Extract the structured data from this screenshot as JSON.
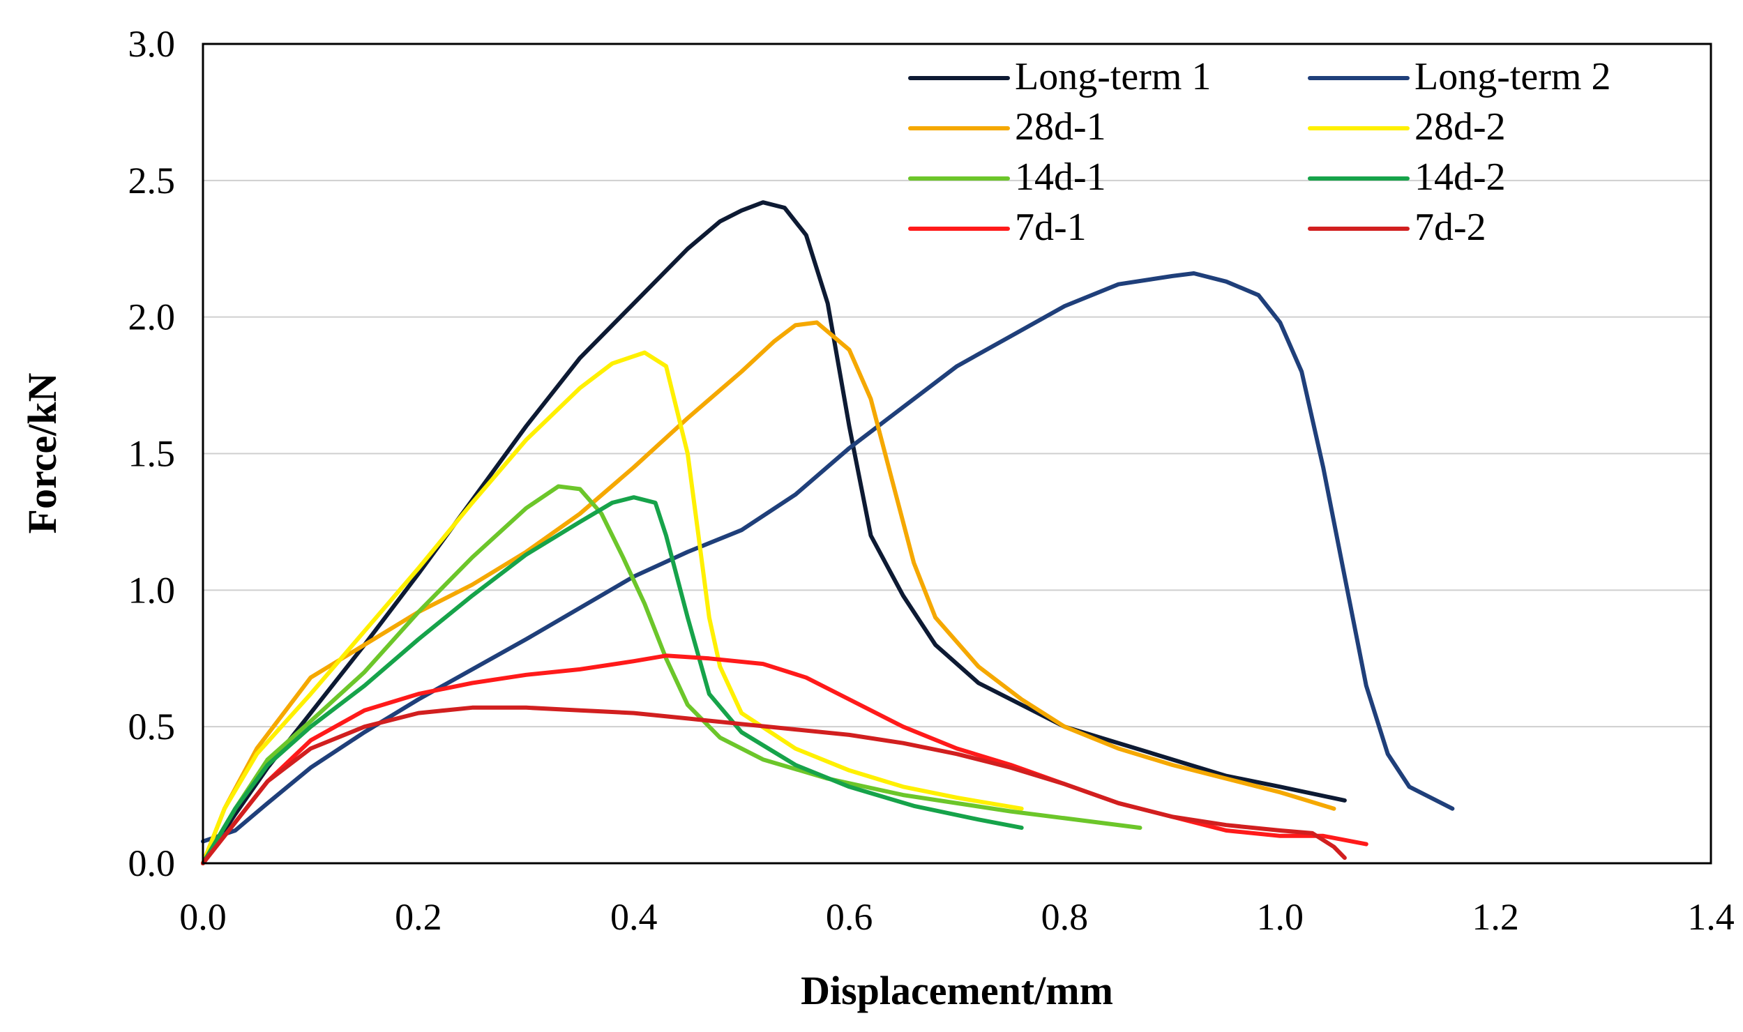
{
  "chart_data": {
    "type": "line",
    "title": "",
    "xlabel": "Displacement/mm",
    "ylabel": "Force/kN",
    "xlim": [
      0,
      1.4
    ],
    "ylim": [
      0,
      3.0
    ],
    "x_ticks": [
      "0.0",
      "0.2",
      "0.4",
      "0.6",
      "0.8",
      "1.0",
      "1.2",
      "1.4"
    ],
    "y_ticks": [
      "0.0",
      "0.5",
      "1.0",
      "1.5",
      "2.0",
      "2.5",
      "3.0"
    ],
    "grid": "horizontal",
    "legend_position": "top-right",
    "series": [
      {
        "name": "Long-term 1",
        "color": "#0d1a33",
        "points": [
          [
            0,
            0
          ],
          [
            0.03,
            0.18
          ],
          [
            0.06,
            0.35
          ],
          [
            0.1,
            0.55
          ],
          [
            0.15,
            0.8
          ],
          [
            0.2,
            1.06
          ],
          [
            0.25,
            1.33
          ],
          [
            0.3,
            1.6
          ],
          [
            0.35,
            1.85
          ],
          [
            0.4,
            2.05
          ],
          [
            0.45,
            2.25
          ],
          [
            0.48,
            2.35
          ],
          [
            0.5,
            2.39
          ],
          [
            0.52,
            2.42
          ],
          [
            0.54,
            2.4
          ],
          [
            0.56,
            2.3
          ],
          [
            0.58,
            2.05
          ],
          [
            0.6,
            1.6
          ],
          [
            0.62,
            1.2
          ],
          [
            0.65,
            0.98
          ],
          [
            0.68,
            0.8
          ],
          [
            0.72,
            0.66
          ],
          [
            0.76,
            0.58
          ],
          [
            0.8,
            0.5
          ],
          [
            0.85,
            0.44
          ],
          [
            0.9,
            0.38
          ],
          [
            0.95,
            0.32
          ],
          [
            1.0,
            0.28
          ],
          [
            1.06,
            0.23
          ]
        ]
      },
      {
        "name": "Long-term 2",
        "color": "#1f3f7a",
        "points": [
          [
            0,
            0.08
          ],
          [
            0.03,
            0.12
          ],
          [
            0.06,
            0.22
          ],
          [
            0.1,
            0.35
          ],
          [
            0.15,
            0.48
          ],
          [
            0.2,
            0.6
          ],
          [
            0.3,
            0.82
          ],
          [
            0.4,
            1.05
          ],
          [
            0.45,
            1.14
          ],
          [
            0.5,
            1.22
          ],
          [
            0.55,
            1.35
          ],
          [
            0.6,
            1.52
          ],
          [
            0.65,
            1.67
          ],
          [
            0.7,
            1.82
          ],
          [
            0.75,
            1.93
          ],
          [
            0.8,
            2.04
          ],
          [
            0.85,
            2.12
          ],
          [
            0.9,
            2.15
          ],
          [
            0.92,
            2.16
          ],
          [
            0.95,
            2.13
          ],
          [
            0.98,
            2.08
          ],
          [
            1.0,
            1.98
          ],
          [
            1.02,
            1.8
          ],
          [
            1.04,
            1.45
          ],
          [
            1.06,
            1.05
          ],
          [
            1.08,
            0.65
          ],
          [
            1.1,
            0.4
          ],
          [
            1.12,
            0.28
          ],
          [
            1.16,
            0.2
          ]
        ]
      },
      {
        "name": "28d-1",
        "color": "#f5a800",
        "points": [
          [
            0,
            0
          ],
          [
            0.02,
            0.2
          ],
          [
            0.05,
            0.42
          ],
          [
            0.1,
            0.68
          ],
          [
            0.15,
            0.8
          ],
          [
            0.2,
            0.92
          ],
          [
            0.25,
            1.02
          ],
          [
            0.3,
            1.14
          ],
          [
            0.35,
            1.28
          ],
          [
            0.4,
            1.45
          ],
          [
            0.45,
            1.63
          ],
          [
            0.5,
            1.8
          ],
          [
            0.53,
            1.91
          ],
          [
            0.55,
            1.97
          ],
          [
            0.57,
            1.98
          ],
          [
            0.6,
            1.88
          ],
          [
            0.62,
            1.7
          ],
          [
            0.64,
            1.4
          ],
          [
            0.66,
            1.1
          ],
          [
            0.68,
            0.9
          ],
          [
            0.72,
            0.72
          ],
          [
            0.76,
            0.6
          ],
          [
            0.8,
            0.5
          ],
          [
            0.85,
            0.42
          ],
          [
            0.9,
            0.36
          ],
          [
            0.95,
            0.31
          ],
          [
            1.0,
            0.26
          ],
          [
            1.05,
            0.2
          ]
        ]
      },
      {
        "name": "28d-2",
        "color": "#fff000",
        "points": [
          [
            0,
            0
          ],
          [
            0.02,
            0.2
          ],
          [
            0.05,
            0.4
          ],
          [
            0.1,
            0.62
          ],
          [
            0.15,
            0.85
          ],
          [
            0.2,
            1.08
          ],
          [
            0.25,
            1.32
          ],
          [
            0.3,
            1.55
          ],
          [
            0.35,
            1.74
          ],
          [
            0.38,
            1.83
          ],
          [
            0.41,
            1.87
          ],
          [
            0.43,
            1.82
          ],
          [
            0.45,
            1.5
          ],
          [
            0.46,
            1.2
          ],
          [
            0.47,
            0.9
          ],
          [
            0.48,
            0.72
          ],
          [
            0.5,
            0.55
          ],
          [
            0.55,
            0.42
          ],
          [
            0.6,
            0.34
          ],
          [
            0.65,
            0.28
          ],
          [
            0.7,
            0.24
          ],
          [
            0.76,
            0.2
          ]
        ]
      },
      {
        "name": "14d-1",
        "color": "#6cc62a",
        "points": [
          [
            0,
            0
          ],
          [
            0.03,
            0.2
          ],
          [
            0.06,
            0.38
          ],
          [
            0.1,
            0.52
          ],
          [
            0.15,
            0.7
          ],
          [
            0.2,
            0.92
          ],
          [
            0.25,
            1.12
          ],
          [
            0.3,
            1.3
          ],
          [
            0.33,
            1.38
          ],
          [
            0.35,
            1.37
          ],
          [
            0.37,
            1.28
          ],
          [
            0.39,
            1.12
          ],
          [
            0.41,
            0.95
          ],
          [
            0.43,
            0.75
          ],
          [
            0.45,
            0.58
          ],
          [
            0.48,
            0.46
          ],
          [
            0.52,
            0.38
          ],
          [
            0.58,
            0.31
          ],
          [
            0.65,
            0.25
          ],
          [
            0.75,
            0.19
          ],
          [
            0.87,
            0.13
          ]
        ]
      },
      {
        "name": "14d-2",
        "color": "#16a34a",
        "points": [
          [
            0,
            0
          ],
          [
            0.03,
            0.2
          ],
          [
            0.06,
            0.36
          ],
          [
            0.1,
            0.5
          ],
          [
            0.15,
            0.65
          ],
          [
            0.2,
            0.82
          ],
          [
            0.25,
            0.98
          ],
          [
            0.3,
            1.13
          ],
          [
            0.35,
            1.25
          ],
          [
            0.38,
            1.32
          ],
          [
            0.4,
            1.34
          ],
          [
            0.42,
            1.32
          ],
          [
            0.43,
            1.2
          ],
          [
            0.45,
            0.9
          ],
          [
            0.47,
            0.62
          ],
          [
            0.5,
            0.48
          ],
          [
            0.55,
            0.36
          ],
          [
            0.6,
            0.28
          ],
          [
            0.66,
            0.21
          ],
          [
            0.72,
            0.16
          ],
          [
            0.76,
            0.13
          ]
        ]
      },
      {
        "name": "7d-1",
        "color": "#ff1a1a",
        "points": [
          [
            0,
            0
          ],
          [
            0.03,
            0.15
          ],
          [
            0.06,
            0.3
          ],
          [
            0.1,
            0.45
          ],
          [
            0.15,
            0.56
          ],
          [
            0.2,
            0.62
          ],
          [
            0.25,
            0.66
          ],
          [
            0.3,
            0.69
          ],
          [
            0.35,
            0.71
          ],
          [
            0.4,
            0.74
          ],
          [
            0.43,
            0.76
          ],
          [
            0.47,
            0.75
          ],
          [
            0.52,
            0.73
          ],
          [
            0.56,
            0.68
          ],
          [
            0.6,
            0.6
          ],
          [
            0.65,
            0.5
          ],
          [
            0.7,
            0.42
          ],
          [
            0.75,
            0.36
          ],
          [
            0.8,
            0.29
          ],
          [
            0.85,
            0.22
          ],
          [
            0.9,
            0.17
          ],
          [
            0.95,
            0.12
          ],
          [
            1.0,
            0.1
          ],
          [
            1.04,
            0.1
          ],
          [
            1.08,
            0.07
          ]
        ]
      },
      {
        "name": "7d-2",
        "color": "#d11f1f",
        "points": [
          [
            0,
            0
          ],
          [
            0.03,
            0.15
          ],
          [
            0.06,
            0.3
          ],
          [
            0.1,
            0.42
          ],
          [
            0.15,
            0.5
          ],
          [
            0.2,
            0.55
          ],
          [
            0.25,
            0.57
          ],
          [
            0.3,
            0.57
          ],
          [
            0.35,
            0.56
          ],
          [
            0.4,
            0.55
          ],
          [
            0.45,
            0.53
          ],
          [
            0.5,
            0.51
          ],
          [
            0.55,
            0.49
          ],
          [
            0.6,
            0.47
          ],
          [
            0.65,
            0.44
          ],
          [
            0.7,
            0.4
          ],
          [
            0.75,
            0.35
          ],
          [
            0.8,
            0.29
          ],
          [
            0.85,
            0.22
          ],
          [
            0.9,
            0.17
          ],
          [
            0.95,
            0.14
          ],
          [
            1.0,
            0.12
          ],
          [
            1.03,
            0.11
          ],
          [
            1.05,
            0.06
          ],
          [
            1.06,
            0.02
          ]
        ]
      }
    ]
  }
}
